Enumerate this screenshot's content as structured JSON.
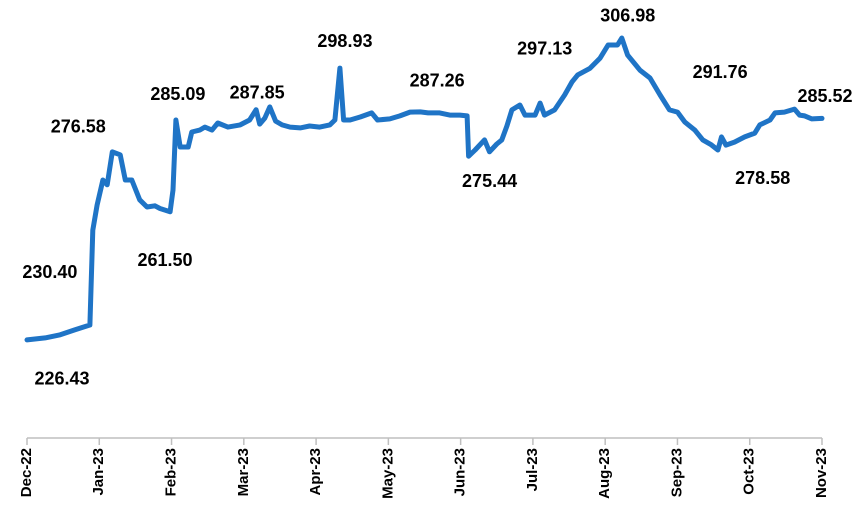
{
  "chart_data": {
    "type": "line",
    "x": [
      0,
      0.25,
      0.46,
      0.66,
      0.87,
      0.91,
      0.97,
      1.05,
      1.11,
      1.18,
      1.29,
      1.36,
      1.45,
      1.56,
      1.66,
      1.77,
      1.84,
      1.98,
      2.02,
      2.06,
      2.12,
      2.23,
      2.28,
      2.39,
      2.46,
      2.56,
      2.64,
      2.78,
      2.95,
      3.08,
      3.17,
      3.22,
      3.29,
      3.36,
      3.44,
      3.53,
      3.64,
      3.78,
      3.91,
      4.05,
      4.19,
      4.26,
      4.33,
      4.38,
      4.47,
      4.61,
      4.77,
      4.85,
      5.02,
      5.16,
      5.3,
      5.44,
      5.55,
      5.71,
      5.85,
      5.99,
      6.09,
      6.11,
      6.2,
      6.33,
      6.4,
      6.5,
      6.57,
      6.64,
      6.71,
      6.82,
      6.89,
      7.03,
      7.1,
      7.16,
      7.3,
      7.44,
      7.54,
      7.62,
      7.79,
      7.93,
      8.04,
      8.17,
      8.23,
      8.31,
      8.48,
      8.62,
      8.76,
      8.89,
      9.0,
      9.1,
      9.24,
      9.35,
      9.46,
      9.56,
      9.61,
      9.67,
      9.79,
      9.93,
      10.07,
      10.14,
      10.28,
      10.35,
      10.48,
      10.62,
      10.69,
      10.76,
      10.86,
      11
    ],
    "series": [
      {
        "color": "#1f74c6",
        "values": [
          226.43,
          226.96,
          227.8,
          229.1,
          230.4,
          255.7,
          262.4,
          269.1,
          267.8,
          276.58,
          275.8,
          269.1,
          269.1,
          263.8,
          261.9,
          262.2,
          261.5,
          260.6,
          266.4,
          285.09,
          277.9,
          277.9,
          281.9,
          282.4,
          283.2,
          282.4,
          284.3,
          283.2,
          283.8,
          285.1,
          287.85,
          284.0,
          285.6,
          288.6,
          284.8,
          283.8,
          283.2,
          283.0,
          283.5,
          283.2,
          283.8,
          285.1,
          298.93,
          285.1,
          285.1,
          285.9,
          287.0,
          285.1,
          285.4,
          286.2,
          287.2,
          287.26,
          287.0,
          287.0,
          286.4,
          286.4,
          286.2,
          275.44,
          277.1,
          279.8,
          276.6,
          278.7,
          279.8,
          283.5,
          287.8,
          289.1,
          286.4,
          286.4,
          289.6,
          286.4,
          287.8,
          291.8,
          295.2,
          297.13,
          298.9,
          301.6,
          305.1,
          305.1,
          306.98,
          302.4,
          298.4,
          296.3,
          291.76,
          287.8,
          287.2,
          284.6,
          282.4,
          279.8,
          278.58,
          277.1,
          280.6,
          278.4,
          279.2,
          280.6,
          281.6,
          283.8,
          285.1,
          287.0,
          287.2,
          288.0,
          286.4,
          286.2,
          285.4,
          285.52
        ],
        "value_labels": [
          "226.43",
          null,
          null,
          null,
          "230.40",
          null,
          null,
          null,
          null,
          "276.58",
          null,
          null,
          null,
          null,
          null,
          null,
          "261.50",
          null,
          null,
          "285.09",
          null,
          null,
          null,
          null,
          null,
          null,
          null,
          null,
          null,
          null,
          "287.85",
          null,
          null,
          null,
          null,
          null,
          null,
          null,
          null,
          null,
          null,
          null,
          "298.93",
          null,
          null,
          null,
          null,
          null,
          null,
          null,
          null,
          "287.26",
          null,
          null,
          null,
          null,
          null,
          "275.44",
          null,
          null,
          null,
          null,
          null,
          null,
          null,
          null,
          null,
          null,
          null,
          null,
          null,
          null,
          null,
          "297.13",
          null,
          null,
          null,
          null,
          "306.98",
          null,
          null,
          null,
          "291.76",
          null,
          null,
          null,
          null,
          null,
          "278.58",
          null,
          null,
          null,
          null,
          null,
          null,
          null,
          null,
          null,
          null,
          null,
          null,
          null,
          null,
          "285.52"
        ]
      }
    ],
    "xlim": [
      0,
      11
    ],
    "xticks": [
      {
        "value": 0,
        "label": "Dec-22"
      },
      {
        "value": 1,
        "label": "Jan-23"
      },
      {
        "value": 2,
        "label": "Feb-23"
      },
      {
        "value": 3,
        "label": "Mar-23"
      },
      {
        "value": 4,
        "label": "Apr-23"
      },
      {
        "value": 5,
        "label": "May-23"
      },
      {
        "value": 6,
        "label": "Jun-23"
      },
      {
        "value": 7,
        "label": "Jul-23"
      },
      {
        "value": 8,
        "label": "Aug-23"
      },
      {
        "value": 9,
        "label": "Sep-23"
      },
      {
        "value": 10,
        "label": "Oct-23"
      },
      {
        "value": 11,
        "label": "Nov-23"
      }
    ],
    "ylim": [
      200,
      317
    ]
  }
}
